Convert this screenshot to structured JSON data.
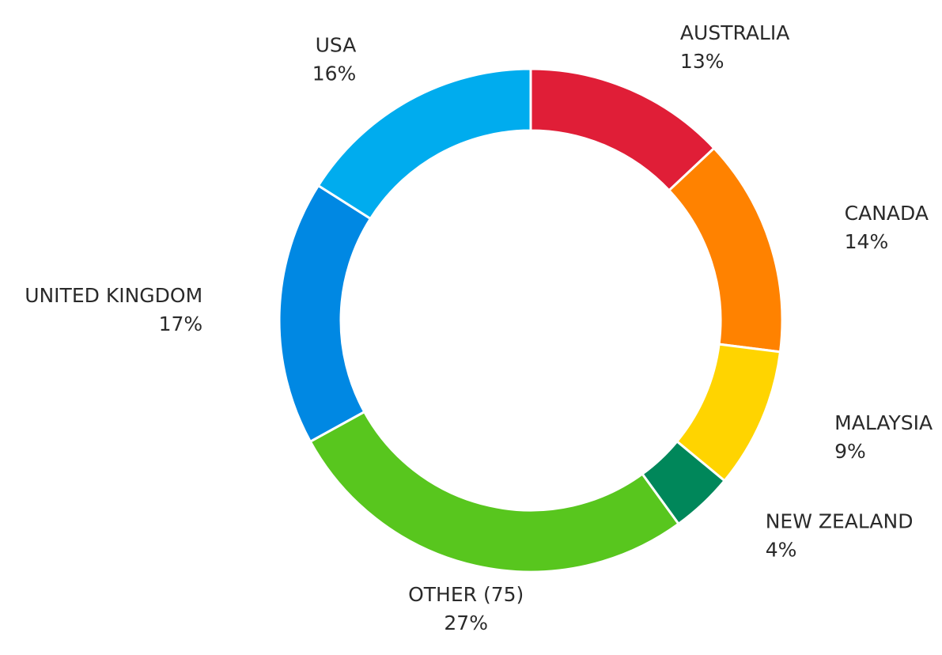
{
  "chart_data": {
    "type": "donut",
    "categories": [
      "AUSTRALIA",
      "CANADA",
      "MALAYSIA",
      "NEW ZEALAND",
      "OTHER (75)",
      "UNITED KINGDOM",
      "USA"
    ],
    "values": [
      13,
      14,
      9,
      4,
      27,
      17,
      16
    ],
    "value_labels": [
      "13%",
      "14%",
      "9%",
      "4%",
      "27%",
      "17%",
      "16%"
    ],
    "colors": [
      "#e01e37",
      "#ff8200",
      "#ffd400",
      "#00875a",
      "#58c61e",
      "#0088e3",
      "#00acee"
    ]
  }
}
